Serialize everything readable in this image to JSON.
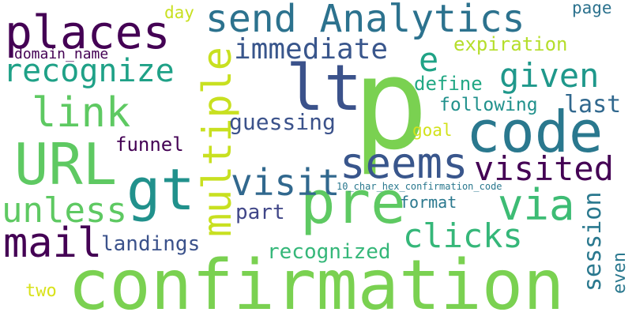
{
  "words": [
    {
      "id": "confirmation",
      "text": "confirmation",
      "color": "#7ad151"
    },
    {
      "id": "p",
      "text": "p",
      "color": "#7ad151"
    },
    {
      "id": "lt",
      "text": "lt",
      "color": "#3b528b"
    },
    {
      "id": "code",
      "text": "code",
      "color": "#2a788e"
    },
    {
      "id": "url",
      "text": "URL",
      "color": "#5ec962"
    },
    {
      "id": "gt",
      "text": "gt",
      "color": "#21918c"
    },
    {
      "id": "pre",
      "text": "pre",
      "color": "#5ec962"
    },
    {
      "id": "send-analytics",
      "text": "send Analytics",
      "color": "#2c728e"
    },
    {
      "id": "places",
      "text": "places",
      "color": "#440154"
    },
    {
      "id": "multiple",
      "text": "multiple",
      "color": "#c8e020"
    },
    {
      "id": "mail",
      "text": "mail",
      "color": "#440154"
    },
    {
      "id": "seems",
      "text": "seems",
      "color": "#39568c"
    },
    {
      "id": "visit",
      "text": "visit",
      "color": "#31688e"
    },
    {
      "id": "via",
      "text": "via",
      "color": "#3dbc74"
    },
    {
      "id": "link",
      "text": "link",
      "color": "#5ec962"
    },
    {
      "id": "recognize",
      "text": "recognize",
      "color": "#1fa187"
    },
    {
      "id": "unless",
      "text": "unless",
      "color": "#5ec962"
    },
    {
      "id": "visited",
      "text": "visited",
      "color": "#440154"
    },
    {
      "id": "clicks",
      "text": "clicks",
      "color": "#35b779"
    },
    {
      "id": "given",
      "text": "given",
      "color": "#1f988b"
    },
    {
      "id": "e",
      "text": "e",
      "color": "#20a386"
    },
    {
      "id": "immediate",
      "text": "immediate",
      "color": "#39568c"
    },
    {
      "id": "session",
      "text": "session",
      "color": "#2a788e"
    },
    {
      "id": "guessing",
      "text": "guessing",
      "color": "#3b528b"
    },
    {
      "id": "last",
      "text": "last",
      "color": "#31688e"
    },
    {
      "id": "part",
      "text": "part",
      "color": "#404688"
    },
    {
      "id": "recognized",
      "text": "recognized",
      "color": "#35b779"
    },
    {
      "id": "landings",
      "text": "landings",
      "color": "#3b528b"
    },
    {
      "id": "funnel",
      "text": "funnel",
      "color": "#440154"
    },
    {
      "id": "define",
      "text": "define",
      "color": "#22a884"
    },
    {
      "id": "following",
      "text": "following",
      "color": "#21918c"
    },
    {
      "id": "expiration",
      "text": "expiration",
      "color": "#b5de2b"
    },
    {
      "id": "format",
      "text": "format",
      "color": "#2a788e"
    },
    {
      "id": "even",
      "text": "even",
      "color": "#2a788e"
    },
    {
      "id": "page",
      "text": "page",
      "color": "#2c728e"
    },
    {
      "id": "day",
      "text": "day",
      "color": "#c8e020"
    },
    {
      "id": "goal",
      "text": "goal",
      "color": "#d2e21b"
    },
    {
      "id": "two",
      "text": "two",
      "color": "#d8e219"
    },
    {
      "id": "domain-name",
      "text": "domain_name",
      "color": "#440154"
    },
    {
      "id": "hex-code",
      "text": "10_char_hex_confirmation_code",
      "color": "#2a788e"
    }
  ]
}
